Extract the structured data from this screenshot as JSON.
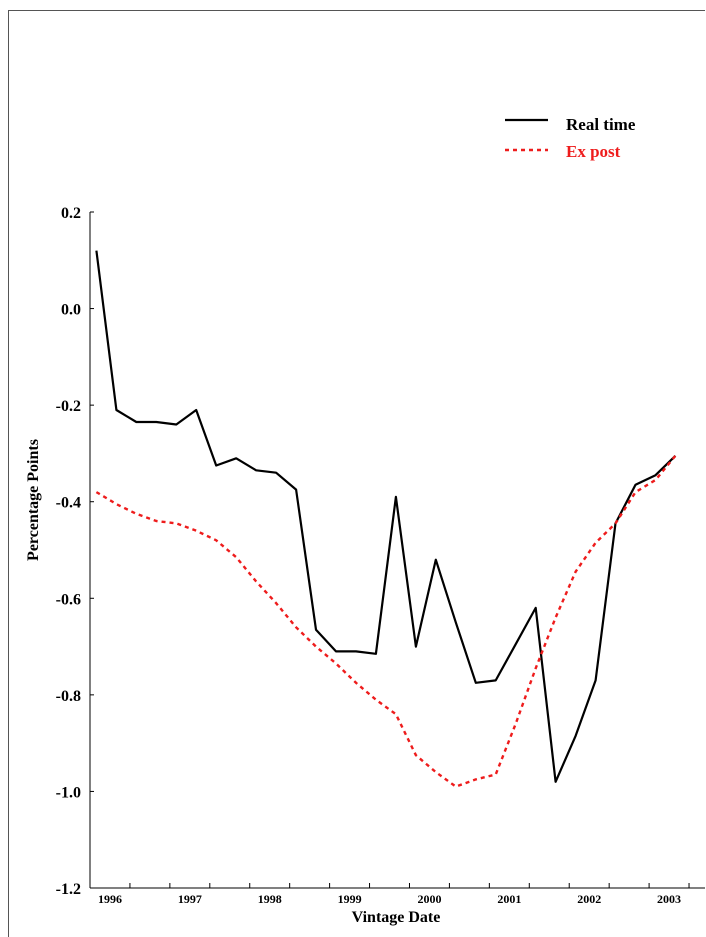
{
  "chart_data": {
    "type": "line",
    "xlabel": "Vintage Date",
    "ylabel": "Percentage Points",
    "xlim": [
      1996.0,
      2003.7
    ],
    "ylim": [
      -1.2,
      0.2
    ],
    "x_tick_labels": [
      "1996",
      "1997",
      "1998",
      "1999",
      "2000",
      "2001",
      "2002",
      "2003"
    ],
    "x_ticks": [
      1996,
      1997,
      1998,
      1999,
      2000,
      2001,
      2002,
      2003
    ],
    "y_ticks": [
      0.2,
      0.0,
      -0.2,
      -0.4,
      -0.6,
      -0.8,
      -1.0,
      -1.2
    ],
    "y_tick_labels": [
      "0.2",
      "0.0",
      "-0.2",
      "-0.4",
      "-0.6",
      "-0.8",
      "-1.0",
      "-1.2"
    ],
    "grid": false,
    "legend_position": "top-right",
    "series": [
      {
        "name": "Real time",
        "color": "#000000",
        "style": "solid",
        "x": [
          1996.08,
          1996.33,
          1996.58,
          1996.83,
          1997.08,
          1997.33,
          1997.58,
          1997.83,
          1998.08,
          1998.33,
          1998.58,
          1998.83,
          1999.08,
          1999.33,
          1999.58,
          1999.83,
          2000.08,
          2000.33,
          2000.58,
          2000.83,
          2001.08,
          2001.33,
          2001.58,
          2001.83,
          2002.08,
          2002.33,
          2002.58,
          2002.83,
          2003.08,
          2003.33
        ],
        "y": [
          0.12,
          -0.21,
          -0.235,
          -0.235,
          -0.24,
          -0.21,
          -0.325,
          -0.31,
          -0.335,
          -0.34,
          -0.375,
          -0.665,
          -0.71,
          -0.71,
          -0.715,
          -0.39,
          -0.7,
          -0.52,
          -0.65,
          -0.775,
          -0.77,
          -0.695,
          -0.62,
          -0.98,
          -0.885,
          -0.77,
          -0.445,
          -0.365,
          -0.345,
          -0.305
        ]
      },
      {
        "name": "Ex post",
        "color": "#ee1c1c",
        "style": "dotted",
        "x": [
          1996.08,
          1996.33,
          1996.58,
          1996.83,
          1997.08,
          1997.33,
          1997.58,
          1997.83,
          1998.08,
          1998.33,
          1998.58,
          1998.83,
          1999.08,
          1999.33,
          1999.58,
          1999.83,
          2000.08,
          2000.33,
          2000.58,
          2000.83,
          2001.08,
          2001.33,
          2001.58,
          2001.83,
          2002.08,
          2002.33,
          2002.58,
          2002.83,
          2003.08,
          2003.33
        ],
        "y": [
          -0.38,
          -0.405,
          -0.425,
          -0.44,
          -0.445,
          -0.46,
          -0.48,
          -0.515,
          -0.565,
          -0.61,
          -0.66,
          -0.7,
          -0.735,
          -0.775,
          -0.81,
          -0.84,
          -0.925,
          -0.96,
          -0.99,
          -0.975,
          -0.965,
          -0.86,
          -0.745,
          -0.64,
          -0.545,
          -0.485,
          -0.445,
          -0.38,
          -0.355,
          -0.305
        ]
      }
    ]
  }
}
